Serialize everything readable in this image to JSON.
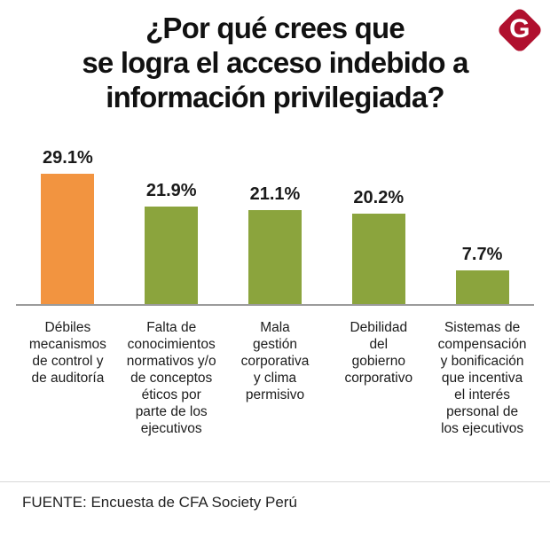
{
  "title": {
    "text": "¿Por qué crees que\nse logra el acceso indebido a\ninformación privilegiada?"
  },
  "logo": {
    "letter": "G",
    "bg_color": "#b0102e"
  },
  "chart_data": {
    "type": "bar",
    "title": "¿Por qué crees que se logra el acceso indebido a información privilegiada?",
    "unit": "%",
    "categories": [
      "Débiles\nmecanismos\nde control y\nde auditoría",
      "Falta de\nconocimientos\nnormativos y/o\nde conceptos\néticos por\nparte de los\nejecutivos",
      "Mala\ngestión\ncorporativa\ny clima\npermisivo",
      "Debilidad\ndel\ngobierno\ncorporativo",
      "Sistemas de\ncompensación\ny bonificación\nque incentiva\nel interés\npersonal de\nlos ejecutivos"
    ],
    "values": [
      29.1,
      21.9,
      21.1,
      20.2,
      7.7
    ],
    "value_labels": [
      "29.1%",
      "21.9%",
      "21.1%",
      "20.2%",
      "7.7%"
    ],
    "bar_colors": [
      "#f29440",
      "#8ba43d",
      "#8ba43d",
      "#8ba43d",
      "#8ba43d"
    ],
    "highlight_color": "#f29440",
    "base_color": "#8ba43d",
    "axis_line_color": "#9b9b9b",
    "ylim": [
      0,
      32
    ],
    "grid": false,
    "legend": false,
    "xlabel": "",
    "ylabel": ""
  },
  "footer": {
    "source": "FUENTE: Encuesta de CFA Society Perú"
  }
}
